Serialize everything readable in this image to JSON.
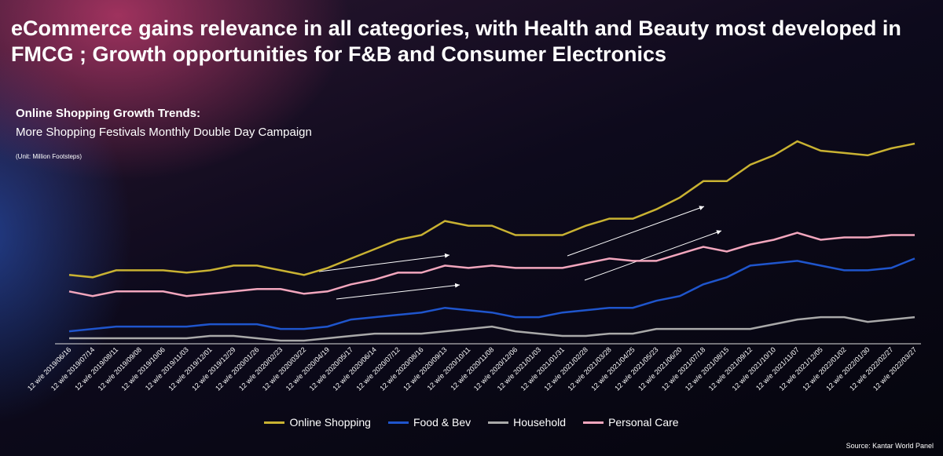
{
  "title": "eCommerce gains relevance in all categories, with Health and Beauty most developed in FMCG ; Growth opportunities for F&B and Consumer Electronics",
  "source": "Source: Kantar World Panel",
  "chart_data": {
    "type": "line",
    "title": "Online Shopping Growth Trends:",
    "subtitle": "More Shopping Festivals Monthly Double Day Campaign",
    "unit_note": "(Unit: Million  Footsteps)",
    "categories": [
      "12 w/e 2019/06/16",
      "12 w/e 2019/07/14",
      "12 w/e 2019/08/11",
      "12 w/e 2019/09/08",
      "12 w/e 2019/10/06",
      "12 w/e 2019/11/03",
      "12 w/e 2019/12/01",
      "12 w/e 2019/12/29",
      "12 w/e 2020/01/26",
      "12 w/e 2020/02/23",
      "12 w/e 2020/03/22",
      "12 w/e 2020/04/19",
      "12 w/e 2020/05/17",
      "12 w/e 2020/06/14",
      "12 w/e 2020/07/12",
      "12 w/e 2020/08/16",
      "12 w/e 2020/09/13",
      "12 w/e 2020/10/11",
      "12 w/e 2020/11/08",
      "12 w/e 2020/12/06",
      "12 w/e 2021/01/03",
      "12 w/e 2021/01/31",
      "12 w/e 2021/02/28",
      "12 w/e 2021/03/28",
      "12 w/e 2021/04/25",
      "12 w/e 2021/05/23",
      "12 w/e 2021/06/20",
      "12 w/e 2021/07/18",
      "12 w/e 2021/08/15",
      "12 w/e 2021/09/12",
      "12 w/e 2021/10/10",
      "12 w/e 2021/11/07",
      "12 w/e 2021/12/05",
      "12 w/e 2022/01/02",
      "12 w/e 2022/01/30",
      "12 w/e 2022/02/27",
      "12 w/e 2022/03/27"
    ],
    "series": [
      {
        "name": "Online Shopping",
        "color": "#c9b232",
        "values": [
          30,
          29,
          32,
          32,
          32,
          31,
          32,
          34,
          34,
          32,
          30,
          33,
          37,
          41,
          45,
          47,
          53,
          51,
          51,
          47,
          47,
          47,
          51,
          54,
          54,
          58,
          63,
          70,
          70,
          77,
          81,
          87,
          83,
          82,
          81,
          84,
          86
        ]
      },
      {
        "name": "Food & Bev",
        "color": "#1f55cc",
        "values": [
          6,
          7,
          8,
          8,
          8,
          8,
          9,
          9,
          9,
          7,
          7,
          8,
          11,
          12,
          13,
          14,
          16,
          15,
          14,
          12,
          12,
          14,
          15,
          16,
          16,
          19,
          21,
          26,
          29,
          34,
          35,
          36,
          34,
          32,
          32,
          33,
          37
        ]
      },
      {
        "name": "Household",
        "color": "#a9a9a9",
        "values": [
          3,
          3,
          3,
          3,
          3,
          3,
          4,
          4,
          3,
          2,
          2,
          3,
          4,
          5,
          5,
          5,
          6,
          7,
          8,
          6,
          5,
          4,
          4,
          5,
          5,
          7,
          7,
          7,
          7,
          7,
          9,
          11,
          12,
          12,
          10,
          11,
          12
        ]
      },
      {
        "name": "Personal Care",
        "color": "#f2a6bd",
        "values": [
          23,
          21,
          23,
          23,
          23,
          21,
          22,
          23,
          24,
          24,
          22,
          23,
          26,
          28,
          31,
          31,
          34,
          33,
          34,
          33,
          33,
          33,
          35,
          37,
          36,
          36,
          39,
          42,
          40,
          43,
          45,
          48,
          45,
          46,
          46,
          47,
          47
        ]
      }
    ]
  }
}
